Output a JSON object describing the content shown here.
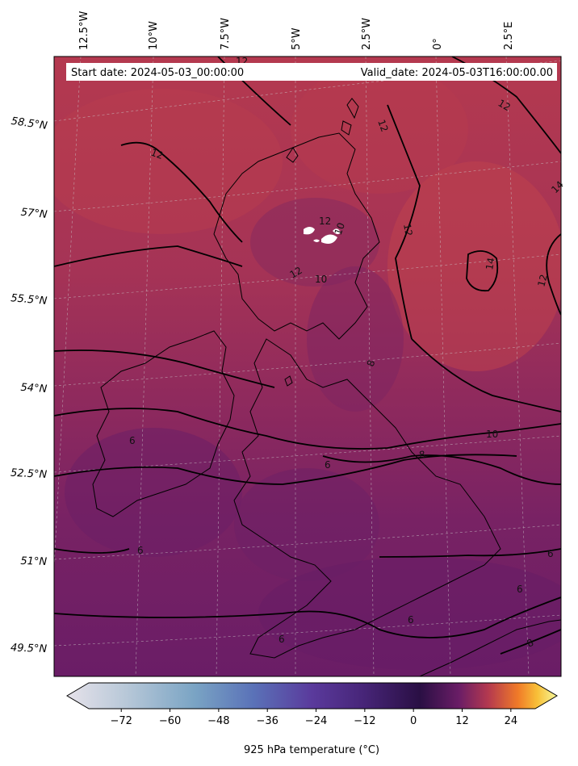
{
  "header": {
    "start_date": "Start date: 2024-05-03_00:00:00",
    "valid_date": "Valid_date: 2024-05-03T16:00:00.00"
  },
  "longitude_labels": [
    "12.5°W",
    "10°W",
    "7.5°W",
    "5°W",
    "2.5°W",
    "0°",
    "2.5°E"
  ],
  "latitude_labels": [
    "58.5°N",
    "57°N",
    "55.5°N",
    "54°N",
    "52.5°N",
    "51°N",
    "49.5°N"
  ],
  "contour_labels": [
    "12",
    "12",
    "12",
    "12",
    "14",
    "12",
    "12",
    "10",
    "10",
    "12",
    "14",
    "12",
    "10",
    "8",
    "8",
    "6",
    "6",
    "6",
    "6",
    "6",
    "8",
    "6",
    "6"
  ],
  "colorbar": {
    "title": "925 hPa temperature ($^\\circ$C)",
    "display_title": "925 hPa temperature (°C)",
    "ticks": [
      "−72",
      "−60",
      "−48",
      "−36",
      "−24",
      "−12",
      "0",
      "12",
      "24"
    ],
    "range": [
      -80,
      30
    ],
    "colormap": "inferno (reversed below 0 to twilight-like)",
    "colors": {
      "cold_end": "#e8e4ec",
      "blue": "#5a6fb5",
      "purple": "#4a2c88",
      "zero": "#2a0f44",
      "warm_red": "#c0404c",
      "orange": "#f79a1e",
      "hot_end": "#f8f89c"
    }
  },
  "map_colors": {
    "north_fill": "#b3384f",
    "mid_fill": "#9a2e5a",
    "south_fill": "#7a2262",
    "far_south_fill": "#6a1d66",
    "contour": "#000000"
  }
}
